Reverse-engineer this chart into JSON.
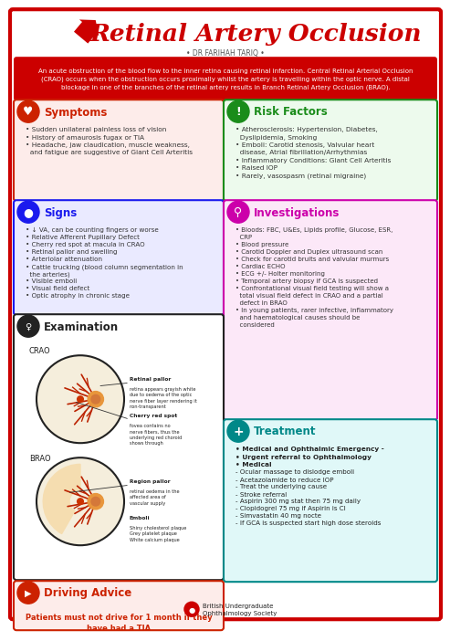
{
  "title": "Retinal Artery Occlusion",
  "subtitle": "• DR FARIHAH TARIQ •",
  "intro": "An acute obstruction of the blood flow to the inner retina causing retinal infarction. Central Retinal Arterial Occlusion\n(CRAO) occurs when the obstruction occurs proximally whilst the artery is travelling within the optic nerve. A distal\nblockage in one of the branches of the retinal artery results in Branch Retinal Artery Occlusion (BRAO).",
  "bg_color": "#ffffff",
  "border_color": "#cc0000",
  "title_color": "#cc0000",
  "intro_bg": "#cc0000",
  "intro_text_color": "#ffffff",
  "symptoms_title": "Symptoms",
  "symptoms_color": "#cc2200",
  "symptoms_bg": "#fdecea",
  "symptoms_border": "#cc2200",
  "symptoms_items": [
    "Sudden unilateral painless loss of vision",
    "History of amaurosis fugax or TIA",
    "Headache, jaw claudication, muscle weakness,\n  and fatigue are suggestive of Giant Cell Arteritis"
  ],
  "risk_title": "Risk Factors",
  "risk_color": "#1a8c1a",
  "risk_bg": "#edfaed",
  "risk_border": "#1a8c1a",
  "risk_items": [
    "Atherosclerosis: Hypertension, Diabetes,\n  Dyslipidemia, Smoking",
    "Emboli: Carotid stenosis, Valvular heart\n  disease, Atrial fibrillation/Arrhythmias",
    "Inflammatory Conditions: Giant Cell Arteritis",
    "Raised IOP",
    "Rarely, vasospasm (retinal migraine)"
  ],
  "signs_title": "Signs",
  "signs_color": "#1a1aee",
  "signs_bg": "#eaeaff",
  "signs_border": "#1a1aee",
  "signs_items": [
    "↓ VA, can be counting fingers or worse",
    "Relative Afferent Pupillary Defect",
    "Cherry red spot at macula in CRAO",
    "Retinal pallor and swelling",
    "Arteriolar attenuation",
    "Cattle trucking (blood column segmentation in\n  the arteries)",
    "Visible emboli",
    "Visual field defect",
    "Optic atrophy in chronic stage"
  ],
  "investigations_title": "Investigations",
  "investigations_color": "#cc00aa",
  "investigations_bg": "#fce8f8",
  "investigations_border": "#cc00aa",
  "investigations_items": [
    "Bloods: FBC, U&Es, Lipids profile, Glucose, ESR,\n  CRP",
    "Blood pressure",
    "Carotid Doppler and Duplex ultrasound scan",
    "Check for carotid bruits and valvular murmurs",
    "Cardiac ECHO",
    "ECG +/- Holter monitoring",
    "Temporal artery biopsy if GCA is suspected",
    "Confrontational visual field testing will show a\n  total visual field defect in CRAO and a partial\n  defect in BRAO",
    "In young patients, rarer infective, inflammatory\n  and haematological causes should be\n  considered"
  ],
  "exam_title": "Examination",
  "exam_color": "#222222",
  "exam_bg": "#ffffff",
  "exam_border": "#222222",
  "treatment_title": "Treatment",
  "treatment_color": "#008888",
  "treatment_bg": "#e0f8f8",
  "treatment_border": "#008888",
  "treatment_items_bold": [
    "Medical and Ophthalmic Emergency -",
    "Urgent referral to Ophthalmology"
  ],
  "treatment_items": [
    "Medical",
    "- Ocular massage to dislodge emboli",
    "- Acetazolamide to reduce IOP",
    "- Treat the underlying cause",
    "- Stroke referral",
    "- Aspirin 300 mg stat then 75 mg daily",
    "- Clopidogrel 75 mg if Aspirin is CI",
    "- Simvastatin 40 mg nocte",
    "- If GCA is suspected start high dose steroids"
  ],
  "driving_title": "Driving Advice",
  "driving_color": "#cc2200",
  "driving_bg": "#fdecea",
  "driving_border": "#cc2200",
  "driving_text": "Patients must not drive for 1 month if they\nhave had a TIA",
  "footer": "British Undergraduate\nOphthalmology Society"
}
